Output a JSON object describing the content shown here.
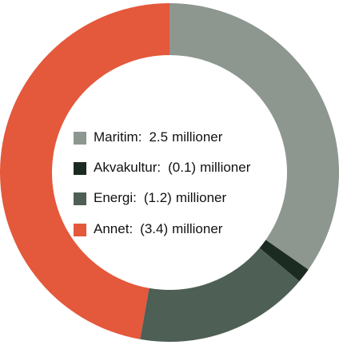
{
  "chart_data": {
    "type": "donut",
    "categories": [
      "Maritim",
      "Akvakultur",
      "Energi",
      "Annet"
    ],
    "values": [
      2.5,
      -0.1,
      -1.2,
      -3.4
    ],
    "value_labels": [
      "2.5",
      "(0.1)",
      "(1.2)",
      "(3.4)"
    ],
    "colors": [
      "#8e9690",
      "#1c2b22",
      "#4e5f55",
      "#e4583b"
    ],
    "separator": ":",
    "unit": "millioner"
  }
}
